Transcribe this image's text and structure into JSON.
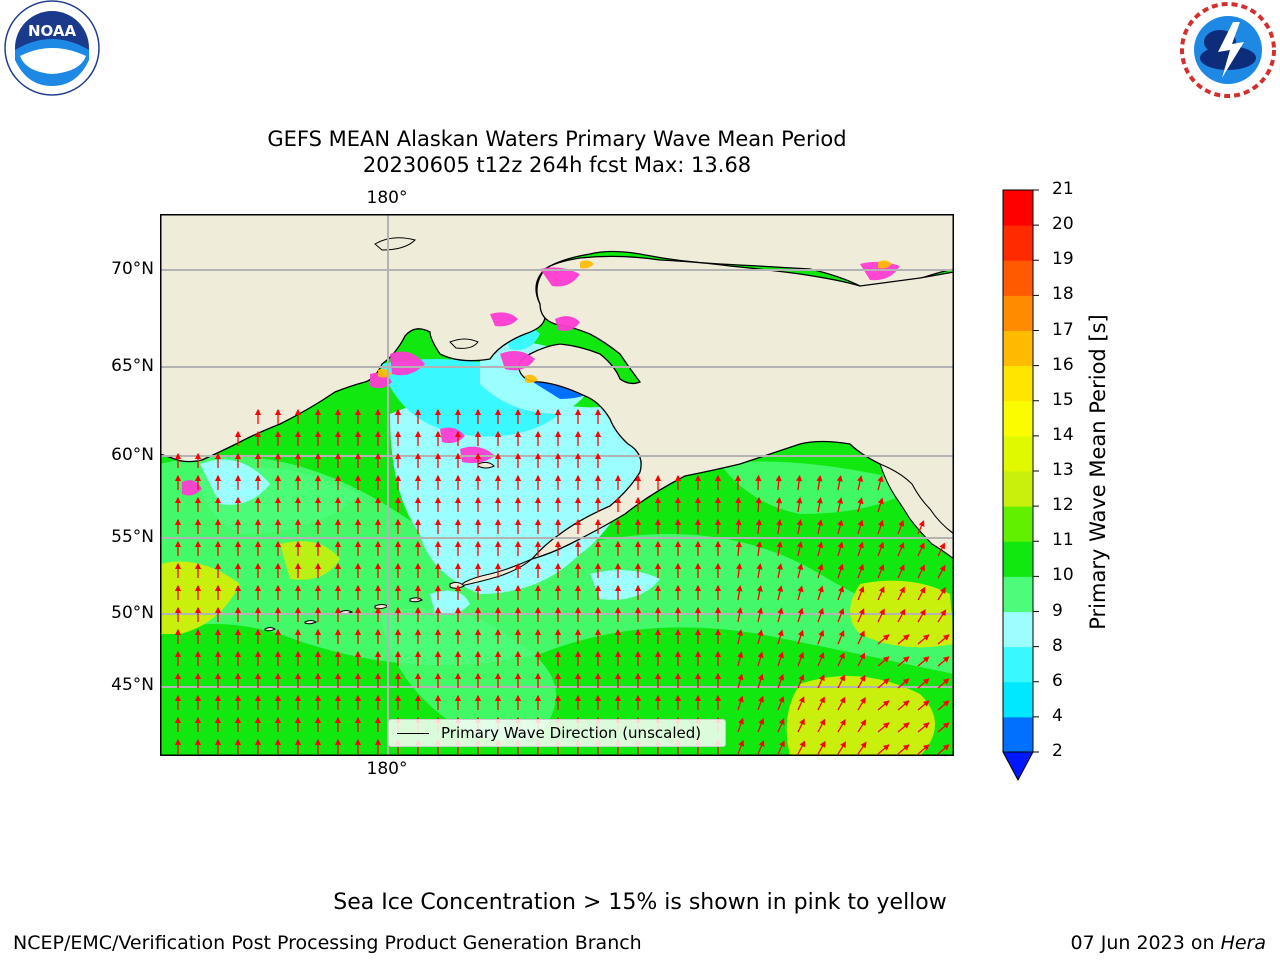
{
  "header": {
    "title_line1": "GEFS MEAN Alaskan Waters Primary Wave Mean Period",
    "title_line2": "20230605 t12z 264h fcst   Max: 13.68"
  },
  "logos": {
    "left_name": "NOAA",
    "left_ring_text": "NATIONAL OCEANIC AND ATMOSPHERIC ADMINISTRATION · U.S. DEPARTMENT OF COMMERCE",
    "right_ring_text": "NATIONAL WEATHER SERVICE"
  },
  "map": {
    "lon_label_top": "180°",
    "lon_label_bottom": "180°",
    "lat_labels": [
      "70°N",
      "65°N",
      "60°N",
      "55°N",
      "50°N",
      "45°N"
    ],
    "legend_label": "Primary Wave Direction (unscaled)",
    "colors": {
      "land": "#efedda",
      "ocean_low": "#4cfc7a",
      "ocean_mid": "#10e810",
      "ocean_high": "#c8f00c",
      "ice": "#ff3cd2",
      "arrow": "#ff0000",
      "grid": "#b3b3b3"
    }
  },
  "colorbar": {
    "label": "Primary Wave Mean Period [s]",
    "ticks": [
      "2",
      "4",
      "6",
      "8",
      "9",
      "10",
      "11",
      "12",
      "13",
      "14",
      "15",
      "16",
      "17",
      "18",
      "19",
      "20",
      "21"
    ],
    "colors": [
      "#0070ff",
      "#00e8ff",
      "#3af8ff",
      "#9cffff",
      "#4cfc7a",
      "#10e810",
      "#60f000",
      "#c8f00c",
      "#e0f800",
      "#fcfc00",
      "#ffe600",
      "#ffbb00",
      "#ff8c00",
      "#ff5a00",
      "#ff2a00",
      "#ff0000"
    ],
    "extend_color": "#0018ff"
  },
  "footer": {
    "note": "Sea Ice Concentration > 15% is shown in pink to yellow",
    "credit": "NCEP/EMC/Verification Post Processing Product Generation Branch",
    "date_prefix": "07 Jun 2023 on ",
    "host": "Hera"
  }
}
